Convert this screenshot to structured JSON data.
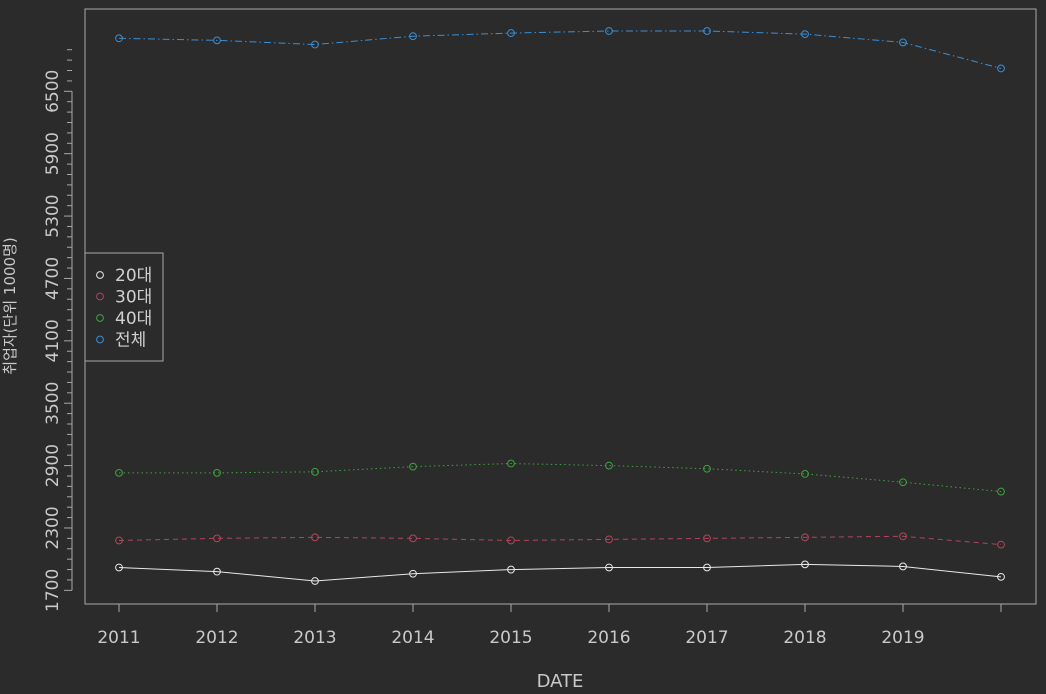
{
  "chart_data": {
    "type": "line",
    "title": "",
    "xlabel": "DATE",
    "ylabel": "취업자(단위 1000명)",
    "x": [
      2011,
      2012,
      2013,
      2014,
      2015,
      2016,
      2017,
      2018,
      2019,
      2020
    ],
    "x_tick_labels": [
      "2011",
      "2012",
      "2013",
      "2014",
      "2015",
      "2016",
      "2017",
      "2018",
      "2019"
    ],
    "y_ticks": [
      1700,
      2300,
      2900,
      3500,
      4100,
      4700,
      5300,
      5900,
      6500
    ],
    "ylim": [
      1600,
      7200
    ],
    "grid": false,
    "legend_position": "left-middle",
    "series": [
      {
        "name": "20대",
        "color": "#e8e8e8",
        "dash": "none",
        "values": [
          1920,
          1880,
          1790,
          1860,
          1900,
          1920,
          1920,
          1950,
          1930,
          1830
        ]
      },
      {
        "name": "30대",
        "color": "#b0455e",
        "dash": "5,4",
        "values": [
          2180,
          2200,
          2210,
          2200,
          2180,
          2190,
          2200,
          2210,
          2220,
          2140
        ]
      },
      {
        "name": "40대",
        "color": "#3fa33f",
        "dash": "1.5,3",
        "values": [
          2830,
          2830,
          2840,
          2890,
          2920,
          2900,
          2870,
          2820,
          2740,
          2650
        ]
      },
      {
        "name": "전체",
        "color": "#3a8fd6",
        "dash": "7,3,1.5,3",
        "values": [
          7010,
          6990,
          6950,
          7030,
          7060,
          7080,
          7080,
          7050,
          6970,
          6720
        ]
      }
    ]
  }
}
